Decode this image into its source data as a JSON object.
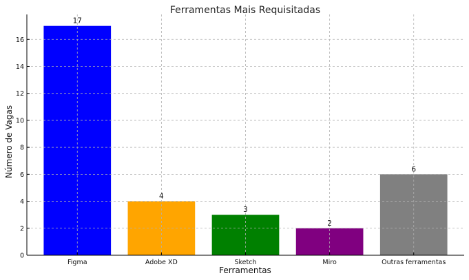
{
  "chart_data": {
    "type": "bar",
    "title": "Ferramentas Mais Requisitadas",
    "xlabel": "Ferramentas",
    "ylabel": "Número de Vagas",
    "categories": [
      "Figma",
      "Adobe XD",
      "Sketch",
      "Miro",
      "Outras ferramentas"
    ],
    "values": [
      17,
      4,
      3,
      2,
      6
    ],
    "colors": [
      "#0000ff",
      "#ffa500",
      "#008000",
      "#800080",
      "#808080"
    ],
    "ylim": [
      0,
      17.85
    ],
    "yticks": [
      0,
      2,
      4,
      6,
      8,
      10,
      12,
      14,
      16
    ],
    "grid": true,
    "data_labels": [
      "17",
      "4",
      "3",
      "2",
      "6"
    ]
  }
}
